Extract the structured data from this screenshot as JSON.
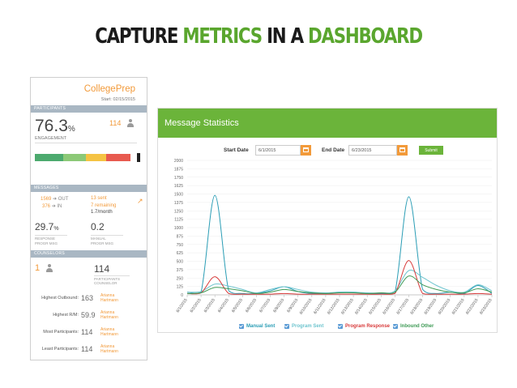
{
  "slide": {
    "title_part1": "CAPTURE",
    "title_part2": "METRICS",
    "title_part3": "IN A",
    "title_part4": "DASHBOARD"
  },
  "left_panel": {
    "brand": "CollegePrep",
    "start_date": "Start: 02/15/2015",
    "participants": {
      "header": "PARTICIPANTS",
      "engagement_value": "76.3",
      "engagement_unit": "%",
      "engagement_label": "ENGAGEMENT",
      "count": "114",
      "bar_segments": [
        {
          "color": "#4caa6e",
          "fraction": 0.28
        },
        {
          "color": "#8cc977",
          "fraction": 0.22
        },
        {
          "color": "#f5c343",
          "fraction": 0.2
        },
        {
          "color": "#e85a4f",
          "fraction": 0.24
        }
      ]
    },
    "messages": {
      "header": "MESSAGES",
      "out_value": "1569",
      "out_label": "OUT",
      "in_value": "376",
      "in_label": "IN",
      "sent": "13 sent",
      "remaining": "7 remaining",
      "per_month": "1.7/month",
      "response_value": "29.7",
      "response_unit": "%",
      "response_label_1": "RESPONSE",
      "response_label_2": "PROGR MSG",
      "manual_value": "0.2",
      "manual_label_1": "MANUAL",
      "manual_label_2": "PROGR MSG"
    },
    "counselors": {
      "header": "COUNSELORS",
      "count": "1",
      "participants_value": "114",
      "participants_label_1": "PARTICIPANTS",
      "participants_label_2": "COUNSELOR",
      "stats": [
        {
          "label": "Highest Outbound:",
          "value": "163",
          "name_1": "Arianna",
          "name_2": "Hartmann"
        },
        {
          "label": "Highest R/M:",
          "value": "59.9",
          "name_1": "Arianna",
          "name_2": "Hartmann"
        },
        {
          "label": "Most Participants:",
          "value": "114",
          "name_1": "Arianna",
          "name_2": "Hartmann"
        },
        {
          "label": "Least Participants:",
          "value": "114",
          "name_1": "Arianna",
          "name_2": "Hartmann"
        }
      ]
    }
  },
  "right_panel": {
    "title": "Message Statistics",
    "start_label": "Start Date",
    "start_value": "6/1/2015",
    "end_label": "End Date",
    "end_value": "6/23/2015",
    "submit_label": "Submit"
  },
  "colors": {
    "manual_sent": "#2a9db5",
    "program_sent": "#6fc5cf",
    "program_response": "#d83a3a",
    "inbound_other": "#3e9a55",
    "header_green": "#6bb43a",
    "accent_orange": "#f29a3a"
  },
  "chart_data": {
    "type": "line",
    "x": [
      "6/1/2015",
      "6/2/2015",
      "6/3/2015",
      "6/4/2015",
      "6/5/2015",
      "6/6/2015",
      "6/7/2015",
      "6/8/2015",
      "6/9/2015",
      "6/10/2015",
      "6/11/2015",
      "6/12/2015",
      "6/13/2015",
      "6/14/2015",
      "6/15/2015",
      "6/16/2015",
      "6/17/2015",
      "6/18/2015",
      "6/19/2015",
      "6/20/2015",
      "6/21/2015",
      "6/22/2015",
      "6/23/2015"
    ],
    "ylim": [
      0,
      2000
    ],
    "yticks": [
      0,
      125,
      250,
      375,
      500,
      625,
      750,
      875,
      1000,
      1125,
      1250,
      1375,
      1500,
      1625,
      1750,
      1875,
      2000
    ],
    "grid": true,
    "legend_position": "bottom",
    "series": [
      {
        "name": "Manual Sent",
        "color_key": "manual_sent",
        "values": [
          40,
          40,
          1480,
          60,
          20,
          20,
          60,
          120,
          50,
          20,
          20,
          40,
          40,
          20,
          20,
          40,
          1460,
          80,
          20,
          40,
          20,
          140,
          20
        ]
      },
      {
        "name": "Program Sent",
        "color_key": "program_sent",
        "values": [
          40,
          50,
          160,
          130,
          80,
          30,
          80,
          120,
          80,
          40,
          30,
          40,
          40,
          30,
          30,
          60,
          360,
          260,
          140,
          60,
          40,
          150,
          60
        ]
      },
      {
        "name": "Program Response",
        "color_key": "program_response",
        "values": [
          20,
          30,
          270,
          20,
          10,
          10,
          10,
          20,
          10,
          10,
          10,
          10,
          10,
          10,
          10,
          20,
          510,
          20,
          10,
          10,
          10,
          20,
          10
        ]
      },
      {
        "name": "Inbound Other",
        "color_key": "inbound_other",
        "values": [
          20,
          30,
          110,
          90,
          60,
          20,
          40,
          80,
          50,
          30,
          20,
          30,
          30,
          20,
          30,
          40,
          280,
          150,
          80,
          40,
          30,
          90,
          40
        ]
      }
    ]
  }
}
